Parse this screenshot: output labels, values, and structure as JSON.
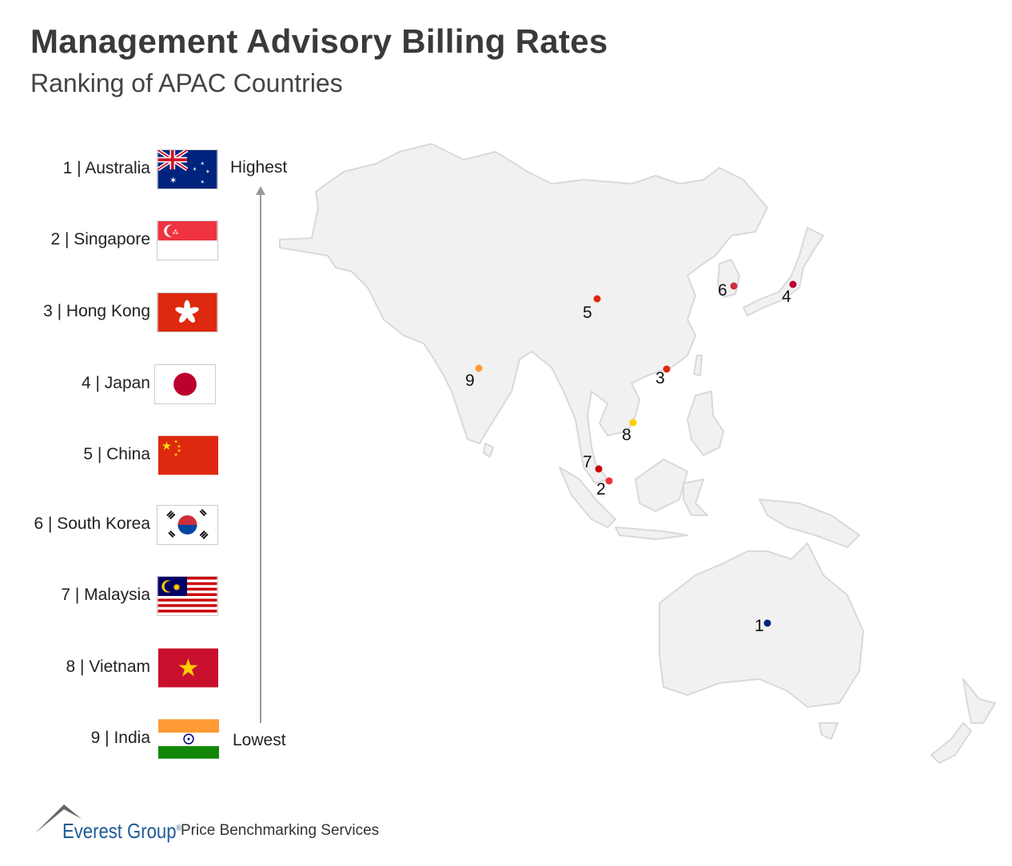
{
  "header": {
    "title": "Management Advisory Billing Rates",
    "subtitle": "Ranking of APAC Countries"
  },
  "ranking": [
    {
      "label": "1 | Australia",
      "flag": "australia-flag"
    },
    {
      "label": "2 | Singapore",
      "flag": "singapore-flag"
    },
    {
      "label": "3 | Hong Kong",
      "flag": "hong-kong-flag"
    },
    {
      "label": "4 | Japan",
      "flag": "japan-flag"
    },
    {
      "label": "5 | China",
      "flag": "china-flag"
    },
    {
      "label": "6 | South Korea",
      "flag": "south-korea-flag"
    },
    {
      "label": "7 | Malaysia",
      "flag": "malaysia-flag"
    },
    {
      "label": "8 | Vietnam",
      "flag": "vietnam-flag"
    },
    {
      "label": "9 | India",
      "flag": "india-flag"
    }
  ],
  "axis": {
    "top": "Highest",
    "bottom": "Lowest"
  },
  "map": {
    "land_color": "#f1f1f1",
    "border_color": "#d9d9d9",
    "markers": [
      {
        "rank": "1",
        "country": "Australia",
        "color": "#00247d"
      },
      {
        "rank": "2",
        "country": "Singapore",
        "color": "#ef3340"
      },
      {
        "rank": "3",
        "country": "Hong Kong",
        "color": "#de2910"
      },
      {
        "rank": "4",
        "country": "Japan",
        "color": "#bc002d"
      },
      {
        "rank": "5",
        "country": "China",
        "color": "#de2910"
      },
      {
        "rank": "6",
        "country": "South Korea",
        "color": "#cd2e3a"
      },
      {
        "rank": "7",
        "country": "Malaysia",
        "color": "#cc0001"
      },
      {
        "rank": "8",
        "country": "Vietnam",
        "color": "#ffcd00"
      },
      {
        "rank": "9",
        "country": "India",
        "color": "#ff9933"
      }
    ]
  },
  "footer": {
    "brand": "Everest Group",
    "registered": "®",
    "service": "Price Benchmarking Services"
  }
}
